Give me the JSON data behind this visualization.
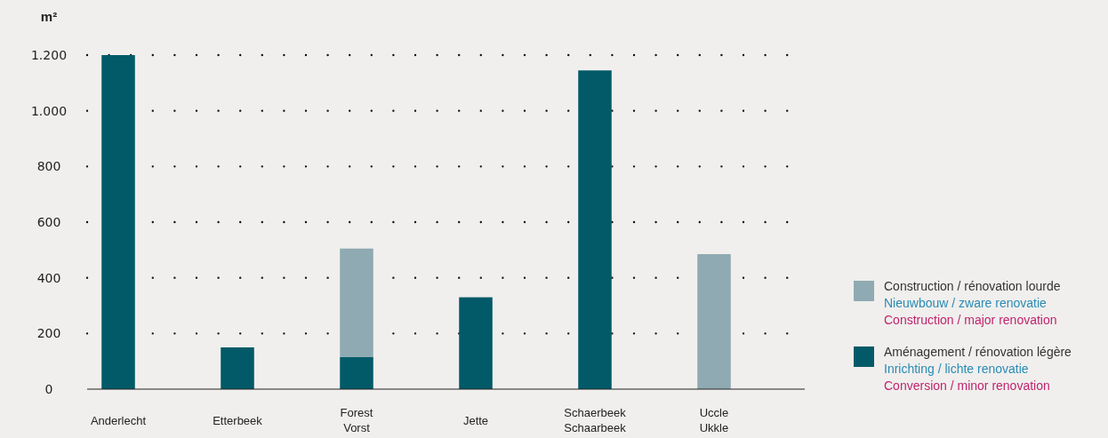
{
  "chart_data": {
    "type": "bar",
    "stacked": true,
    "ylabel": "m²",
    "categories": [
      "Anderlecht",
      "Etterbeek",
      "Forest\nVorst",
      "Jette",
      "Schaerbeek\nSchaarbeek",
      "Uccle\nUkkle"
    ],
    "series": [
      {
        "name": "Aménagement / rénovation légère\nInrichting / lichte renovatie\nConversion / minor renovation",
        "color": "#025a68",
        "values": [
          1200,
          150,
          115,
          330,
          1145,
          null
        ]
      },
      {
        "name": "Construction / rénovation lourde\nNieuwbouw / zware renovatie\nConstruction / major renovation",
        "color": "#8faab2",
        "values": [
          null,
          null,
          390,
          null,
          null,
          485
        ]
      }
    ],
    "ylim": [
      0,
      1200
    ],
    "yticks": [
      0,
      200,
      400,
      600,
      800,
      {
        "value": 1000,
        "label": "1.000"
      },
      {
        "value": 1200,
        "label": "1.200"
      }
    ],
    "grid": "y",
    "legend": "right"
  }
}
